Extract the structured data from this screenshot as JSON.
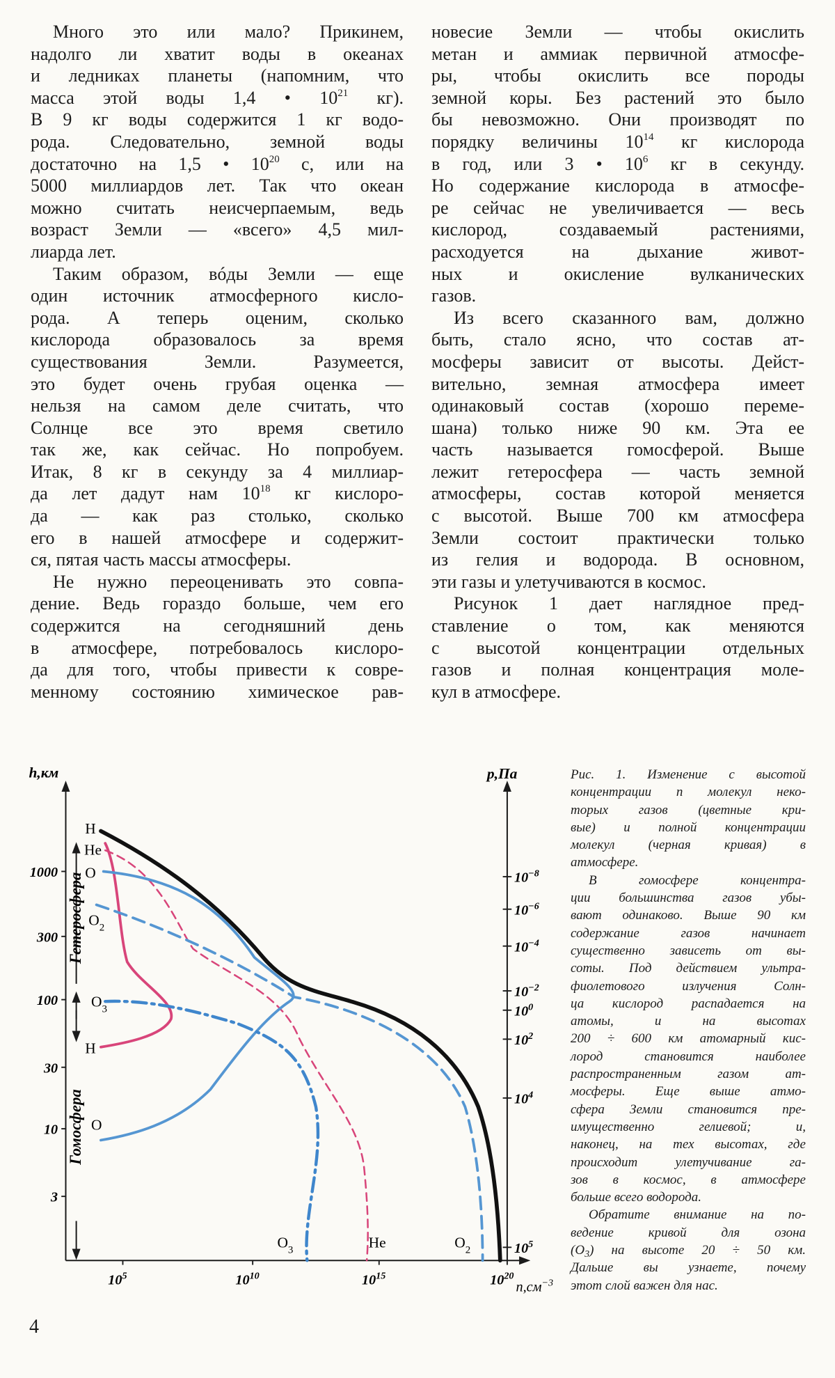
{
  "columns": [
    {
      "paragraphs": [
        [
          "Много это или мало? Прикинем,",
          "надолго ли хватит воды в океанах",
          "и ледниках планеты (напомним, что",
          [
            "масса этой воды 1,4 • 10",
            {
              "sup": "21"
            },
            " кг)."
          ],
          "В 9 кг воды содержится 1 кг водо-",
          "рода. Следовательно, земной воды",
          [
            "достаточно на 1,5 • 10",
            {
              "sup": "20"
            },
            " с, или на"
          ],
          "5000 миллиардов лет. Так что океан",
          "можно считать неисчерпаемым, ведь",
          "возраст Земли — «всего» 4,5 мил-",
          "лиарда лет."
        ],
        [
          "Таким образом, вóды Земли — еще",
          "один источник атмосферного кисло-",
          "рода. А теперь оценим, сколько",
          "кислорода образовалось за время",
          "существования Земли. Разумеется,",
          "это будет очень грубая оценка —",
          "нельзя на самом деле считать, что",
          "Солнце все это время светило",
          "так же, как сейчас. Но попробуем.",
          "Итак, 8 кг в секунду за 4 миллиар-",
          [
            "да лет дадут нам 10",
            {
              "sup": "18"
            },
            " кг кислоро-"
          ],
          "да — как раз столько, сколько",
          "его в нашей атмосфере и содержит-",
          "ся, пятая часть массы атмосферы."
        ],
        [
          "Не нужно переоценивать это совпа-",
          "дение. Ведь гораздо больше, чем его",
          "содержится на сегодняшний день",
          "в атмосфере, потребовалось кислоро-",
          "да для того, чтобы привести к совре-",
          "менному состоянию химическое рав-"
        ]
      ]
    },
    {
      "paragraphs": [
        [
          "новесие Земли — чтобы окислить",
          "метан и аммиак первичной атмосфе-",
          "ры, чтобы окислить все породы",
          "земной коры. Без растений это было",
          "бы невозможно. Они производят по",
          [
            "порядку величины 10",
            {
              "sup": "14"
            },
            " кг кислорода"
          ],
          [
            "в год, или 3 • 10",
            {
              "sup": "6"
            },
            " кг в секунду."
          ],
          "Но содержание кислорода в атмосфе-",
          "ре сейчас не увеличивается — весь",
          "кислород, создаваемый растениями,",
          "расходуется на дыхание живот-",
          "ных и окисление вулканических",
          "газов."
        ],
        [
          "Из всего сказанного вам, должно",
          "быть, стало ясно, что состав ат-",
          "мосферы зависит от высоты. Дейст-",
          "вительно, земная атмосфера имеет",
          "одинаковый состав (хорошо переме-",
          "шана) только ниже 90 км. Эта ее",
          "часть называется гомосферой. Выше",
          "лежит гетеросфера — часть земной",
          "атмосферы, состав которой меняется",
          "с высотой. Выше 700 км атмосфера",
          "Земли состоит практически только",
          "из гелия и водорода. В основном,",
          "эти газы и улетучиваются в космос."
        ],
        [
          "Рисунок 1 дает наглядное пред-",
          "ставление о том, как меняются",
          "с высотой концентрации отдельных",
          "газов и полная концентрация моле-",
          "кул в атмосфере."
        ]
      ]
    }
  ],
  "figure": {
    "y_axis_label": "h,км",
    "p_axis_label": "p,Па",
    "x_axis_label": [
      "n,см",
      {
        "sup": "−3"
      }
    ],
    "y_ticks": [
      "1000",
      "300",
      "100",
      "30",
      "10",
      "3"
    ],
    "x_ticks": [
      [
        "10",
        {
          "sup": "5"
        }
      ],
      [
        "10",
        {
          "sup": "10"
        }
      ],
      [
        "10",
        {
          "sup": "15"
        }
      ],
      [
        "10",
        {
          "sup": "20"
        }
      ]
    ],
    "p_ticks": [
      [
        "10",
        {
          "sup": "−8"
        }
      ],
      [
        "10",
        {
          "sup": "−6"
        }
      ],
      [
        "10",
        {
          "sup": "−4"
        }
      ],
      [
        "10",
        {
          "sup": "−2"
        }
      ],
      [
        "10",
        {
          "sup": "0"
        }
      ],
      [
        "10",
        {
          "sup": "2"
        }
      ],
      [
        "10",
        {
          "sup": "4"
        }
      ],
      [
        "10",
        {
          "sup": "5"
        }
      ]
    ],
    "region_labels": [
      "Гетеросфера",
      "Гомосфера"
    ],
    "curve_labels": [
      "H",
      "He",
      "O",
      [
        "O",
        {
          "sub": "2"
        }
      ],
      [
        "O",
        {
          "sub": "3"
        }
      ],
      "H",
      "O",
      [
        "O",
        {
          "sub": "3"
        }
      ],
      "He",
      [
        "O",
        {
          "sub": "2"
        }
      ]
    ]
  },
  "caption": {
    "paragraphs": [
      [
        "Рис. 1. Изменение с высотой",
        "концентрации n молекул неко-",
        "торых газов (цветные кри-",
        "вые) и полной концентрации",
        "молекул (черная кривая) в",
        "атмосфере."
      ],
      [
        "В гомосфере концентра-",
        "ции большинства газов убы-",
        "вают одинаково. Выше 90 км",
        "содержание газов начинает",
        "существенно зависеть от вы-",
        "соты. Под действием ультра-",
        "фиолетового излучения Солн-",
        "ца кислород распадается на",
        "атомы, и на высотах",
        "200 ÷ 600 км атомарный кис-",
        "лород становится наиболее",
        "распространенным газом ат-",
        "мосферы. Еще выше атмо-",
        "сфера Земли становится пре-",
        "имущественно гелиевой; и,",
        "наконец, на тех высотах, где",
        "происходит улетучивание га-",
        "зов в космос, в атмосфере",
        "больше всего водорода."
      ],
      [
        "Обратите внимание на по-",
        "ведение кривой для озона",
        [
          "(O",
          {
            "sub": "3"
          },
          ") на высоте 20 ÷ 50 км."
        ],
        "Дальше вы узнаете, почему",
        "этот слой важен для нас."
      ]
    ]
  },
  "page_number": "4"
}
